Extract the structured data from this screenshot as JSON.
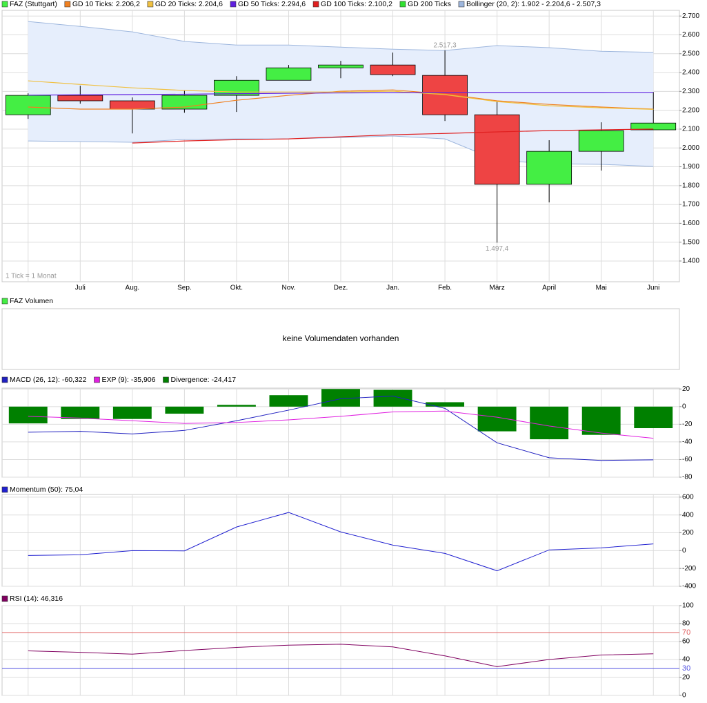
{
  "chart_data": [
    {
      "type": "candlestick",
      "name": "FAZ (Stuttgart)",
      "color": "#44ee44",
      "up_color": "#44ee44",
      "down_color": "#ee4444",
      "note": "1 Tick = 1 Monat",
      "categories": [
        null,
        "Juli",
        "Aug.",
        "Sep.",
        "Okt.",
        "Nov.",
        "Dez.",
        "Jan.",
        "Feb.",
        "März",
        "April",
        "Mai",
        "Juni"
      ],
      "open": [
        2176,
        2279,
        2250,
        2206,
        2279,
        2359,
        2425,
        2440,
        2385,
        2176,
        1807,
        1982,
        2096
      ],
      "high": [
        2290,
        2330,
        2268,
        2305,
        2381,
        2440,
        2462,
        2506,
        2517.3,
        2246,
        2041,
        2136,
        2297
      ],
      "low": [
        2154,
        2235,
        2077,
        2187,
        2191,
        2359,
        2370,
        2381,
        2143,
        1497.4,
        1711,
        1880,
        2096
      ],
      "close": [
        2279,
        2250,
        2206,
        2279,
        2359,
        2425,
        2440,
        2389,
        2176,
        1807,
        1982,
        2092,
        2132
      ],
      "high_labels": [
        null,
        null,
        null,
        null,
        null,
        null,
        null,
        null,
        "2.517,3",
        null,
        null,
        null,
        null
      ],
      "low_labels": [
        null,
        null,
        null,
        null,
        null,
        null,
        null,
        null,
        null,
        "1.497,4",
        null,
        null,
        null
      ],
      "series": [
        {
          "name": "GD 10 Ticks: 2.206,2",
          "color": "#f08020",
          "values": [
            2217,
            2206,
            2206,
            2217,
            2253,
            2279,
            2301,
            2308,
            2286,
            2250,
            2231,
            2217,
            2206.2
          ]
        },
        {
          "name": "GD 20 Ticks: 2.204,6",
          "color": "#f0c040",
          "values": [
            2356,
            2337,
            2319,
            2305,
            2297,
            2297,
            2297,
            2301,
            2283,
            2246,
            2224,
            2213,
            2204.6
          ]
        },
        {
          "name": "GD 50 Ticks: 2.294,6",
          "color": "#6020e0",
          "values": [
            2280,
            2282,
            2283,
            2285,
            2288,
            2290,
            2292,
            2293,
            2294,
            2294,
            2294,
            2294,
            2294.6
          ]
        },
        {
          "name": "GD 100 Ticks: 2.100,2",
          "color": "#e02020",
          "values": [
            null,
            null,
            2026,
            2037,
            2044,
            2048,
            2059,
            2070,
            2077,
            2085,
            2092,
            2096,
            2100.2
          ]
        },
        {
          "name": "GD 200 Ticks",
          "color": "#30e030",
          "values": [
            null,
            null,
            null,
            null,
            null,
            null,
            null,
            null,
            null,
            null,
            null,
            null,
            null
          ]
        },
        {
          "name": "Bollinger (20, 2): 1.902 - 2.204,6 - 2.507,3",
          "color": "#9db6dd",
          "fill": "#e6eefc",
          "upper": [
            2671,
            2645,
            2616,
            2565,
            2546,
            2546,
            2535,
            2524,
            2517,
            2543,
            2532,
            2513,
            2507.3
          ],
          "lower": [
            2037,
            2034,
            2030,
            2045,
            2048,
            2048,
            2055,
            2063,
            2048,
            1935,
            1916,
            1913,
            1902
          ]
        }
      ],
      "ylim": [
        1290,
        2730
      ],
      "yticks": [
        {
          "value": 1400,
          "label": "1.400"
        },
        {
          "value": 1500,
          "label": "1.500"
        },
        {
          "value": 1600,
          "label": "1.600"
        },
        {
          "value": 1700,
          "label": "1.700"
        },
        {
          "value": 1800,
          "label": "1.800"
        },
        {
          "value": 1900,
          "label": "1.900"
        },
        {
          "value": 2000,
          "label": "2.000"
        },
        {
          "value": 2100,
          "label": "2.100"
        },
        {
          "value": 2200,
          "label": "2.200"
        },
        {
          "value": 2300,
          "label": "2.300"
        },
        {
          "value": 2400,
          "label": "2.400"
        },
        {
          "value": 2500,
          "label": "2.500"
        },
        {
          "value": 2600,
          "label": "2.600"
        },
        {
          "value": 2700,
          "label": "2.700"
        }
      ],
      "grid": true
    },
    {
      "type": "empty",
      "message": "keine Volumendaten vorhanden",
      "series": [
        {
          "name": "FAZ Volumen",
          "color": "#44ee44"
        }
      ]
    },
    {
      "type": "combo",
      "series": [
        {
          "name": "MACD (26, 12): -60,322",
          "type": "line",
          "color": "#2020c0",
          "values": [
            -29,
            -28,
            -31,
            -27,
            -16,
            -4,
            9,
            12,
            -2,
            -41,
            -58,
            -61,
            -60.322
          ]
        },
        {
          "name": "EXP (9): -35,906",
          "type": "line",
          "color": "#e020e0",
          "values": [
            -11,
            -13,
            -16,
            -19,
            -18,
            -15,
            -11,
            -6,
            -5,
            -12,
            -22,
            -30,
            -35.906
          ]
        },
        {
          "name": "Divergence: -24,417",
          "type": "bar",
          "color": "#008000",
          "values": [
            -19,
            -14,
            -14,
            -8,
            2,
            13,
            20,
            19,
            5,
            -28,
            -37,
            -32,
            -24.417
          ]
        }
      ],
      "ylim": [
        -80,
        21
      ],
      "yticks": [
        -80,
        -60,
        -40,
        -20,
        0,
        20
      ],
      "grid": true
    },
    {
      "type": "combo",
      "series": [
        {
          "name": "Momentum (50): 75,04",
          "type": "line",
          "color": "#2020d0",
          "values": [
            -54,
            -47,
            0,
            -3,
            265,
            428,
            210,
            62,
            -31,
            -226,
            8,
            31,
            75.04
          ]
        }
      ],
      "ylim": [
        -400,
        630
      ],
      "yticks": [
        -400,
        -200,
        0,
        200,
        400,
        600
      ],
      "grid": true
    },
    {
      "type": "combo",
      "series": [
        {
          "name": "RSI (14): 46,316",
          "type": "line",
          "color": "#800060",
          "values": [
            49.6,
            48,
            46,
            50,
            53.5,
            56,
            57,
            54,
            44,
            32,
            40,
            45,
            46.316
          ]
        }
      ],
      "reference_lines": [
        {
          "value": 70,
          "color": "#e06060"
        },
        {
          "value": 30,
          "color": "#5050e0"
        }
      ],
      "ylim": [
        0,
        100
      ],
      "yticks": [
        0,
        20,
        40,
        60,
        80,
        100
      ],
      "grid": true
    }
  ]
}
